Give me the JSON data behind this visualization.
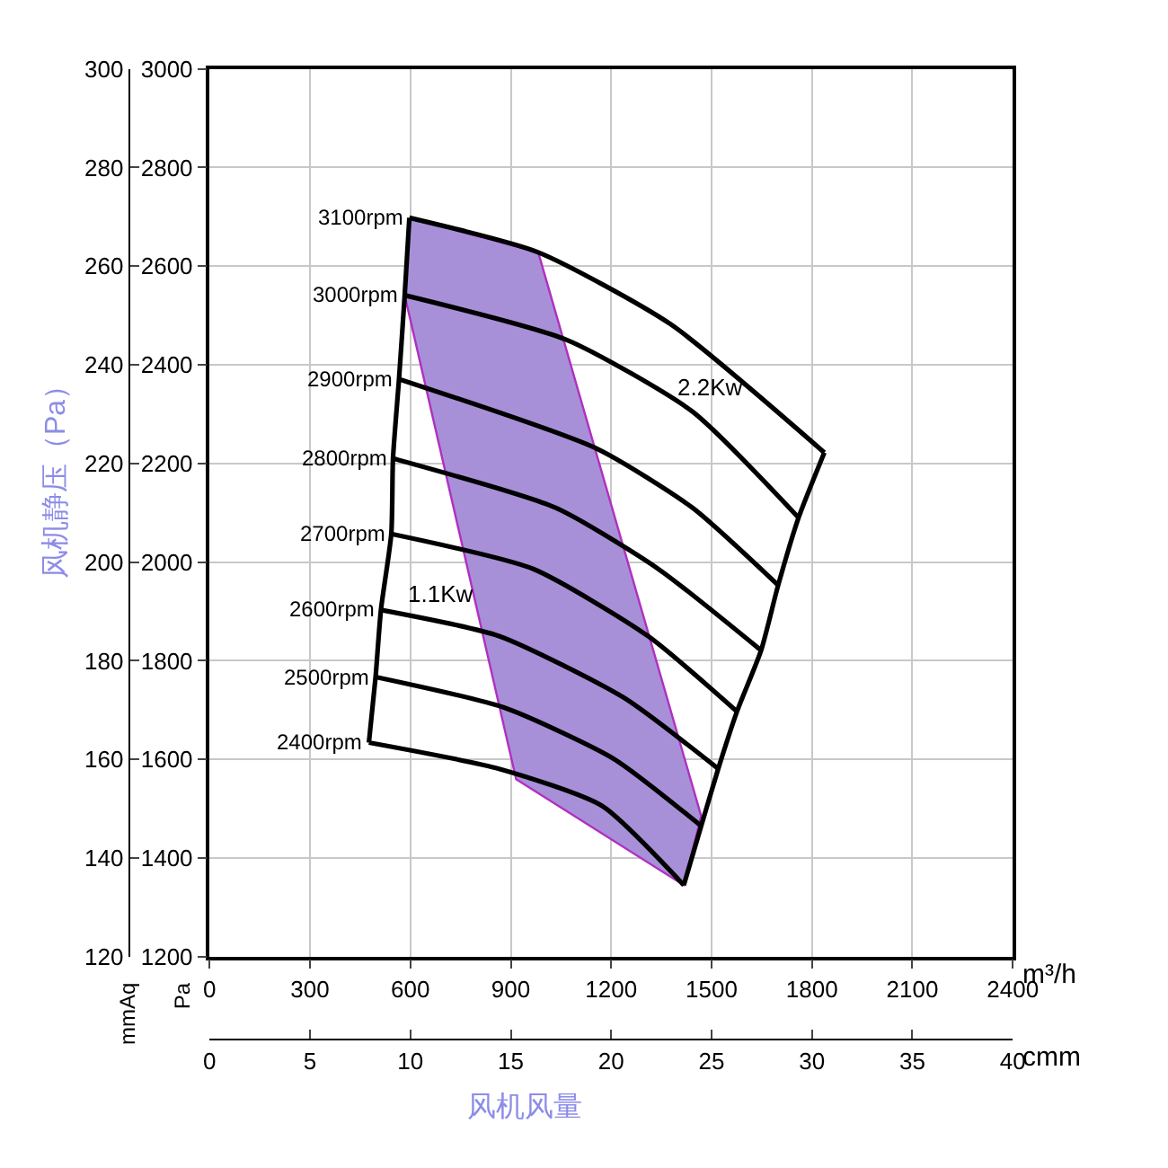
{
  "chart_data": {
    "type": "line",
    "xlabel": "m³/h",
    "x2label": "cmm",
    "ylabel": "Pa",
    "y2label": "mmAq",
    "xlim": [
      0,
      2400
    ],
    "xticks": [
      0,
      300,
      600,
      900,
      1200,
      1500,
      1800,
      2100,
      2400
    ],
    "x2lim": [
      0,
      40
    ],
    "x2ticks": [
      0,
      5,
      10,
      15,
      20,
      25,
      30,
      35,
      40
    ],
    "ylim": [
      1200,
      3000
    ],
    "yticks": [
      1200,
      1400,
      1600,
      1800,
      2000,
      2200,
      2400,
      2600,
      2800,
      3000
    ],
    "y2lim": [
      120,
      300
    ],
    "y2ticks": [
      120,
      140,
      160,
      180,
      200,
      220,
      240,
      260,
      280,
      300
    ],
    "grid": true,
    "line_style": "solid",
    "marker": "none",
    "series": [
      {
        "type": "area",
        "color": "#a890d8",
        "x": [
          599,
          583,
          916,
          1417,
          1469,
          982,
          599
        ],
        "values": [
          2698,
          2541,
          1560,
          1345,
          1485,
          2628,
          2698
        ]
      },
      {
        "name": "3100rpm",
        "color": "#000000",
        "x": [
          597,
          982,
          1376,
          1837
        ],
        "values": [
          2698,
          2628,
          2483,
          2222
        ]
      },
      {
        "name": "3000rpm",
        "color": "#000000",
        "x": [
          583,
          1069,
          1443,
          1760
        ],
        "values": [
          2541,
          2450,
          2305,
          2090
        ]
      },
      {
        "name": "2900rpm",
        "color": "#000000",
        "x": [
          566,
          1157,
          1443,
          1699
        ],
        "values": [
          2371,
          2230,
          2110,
          1953
        ]
      },
      {
        "name": "2800rpm",
        "color": "#000000",
        "x": [
          548,
          1034,
          1341,
          1648
        ],
        "values": [
          2210,
          2110,
          1986,
          1821
        ]
      },
      {
        "name": "2700rpm",
        "color": "#000000",
        "x": [
          543,
          967,
          1310,
          1576
        ],
        "values": [
          2057,
          1986,
          1850,
          1697
        ]
      },
      {
        "name": "2600rpm",
        "color": "#000000",
        "x": [
          512,
          865,
          1238,
          1520
        ],
        "values": [
          1903,
          1850,
          1725,
          1581
        ]
      },
      {
        "name": "2500rpm",
        "color": "#000000",
        "x": [
          496,
          880,
          1208,
          1469
        ],
        "values": [
          1767,
          1705,
          1601,
          1465
        ]
      },
      {
        "name": "2400rpm",
        "color": "#000000",
        "x": [
          476,
          865,
          1172,
          1417
        ],
        "values": [
          1634,
          1581,
          1506,
          1345
        ]
      },
      {
        "color": "#000000",
        "x": [
          597,
          583,
          566,
          548,
          543,
          512,
          496,
          476
        ],
        "values": [
          2698,
          2541,
          2371,
          2210,
          2057,
          1903,
          1767,
          1634
        ]
      },
      {
        "color": "#000000",
        "x": [
          1837,
          1760,
          1699,
          1648,
          1576,
          1520,
          1469,
          1417
        ],
        "values": [
          2222,
          2090,
          1953,
          1821,
          1697,
          1581,
          1465,
          1345
        ]
      }
    ],
    "annotations": [
      "1.1Kw",
      "2.2Kw",
      "风机静压（Pa）",
      "风机风量"
    ]
  }
}
